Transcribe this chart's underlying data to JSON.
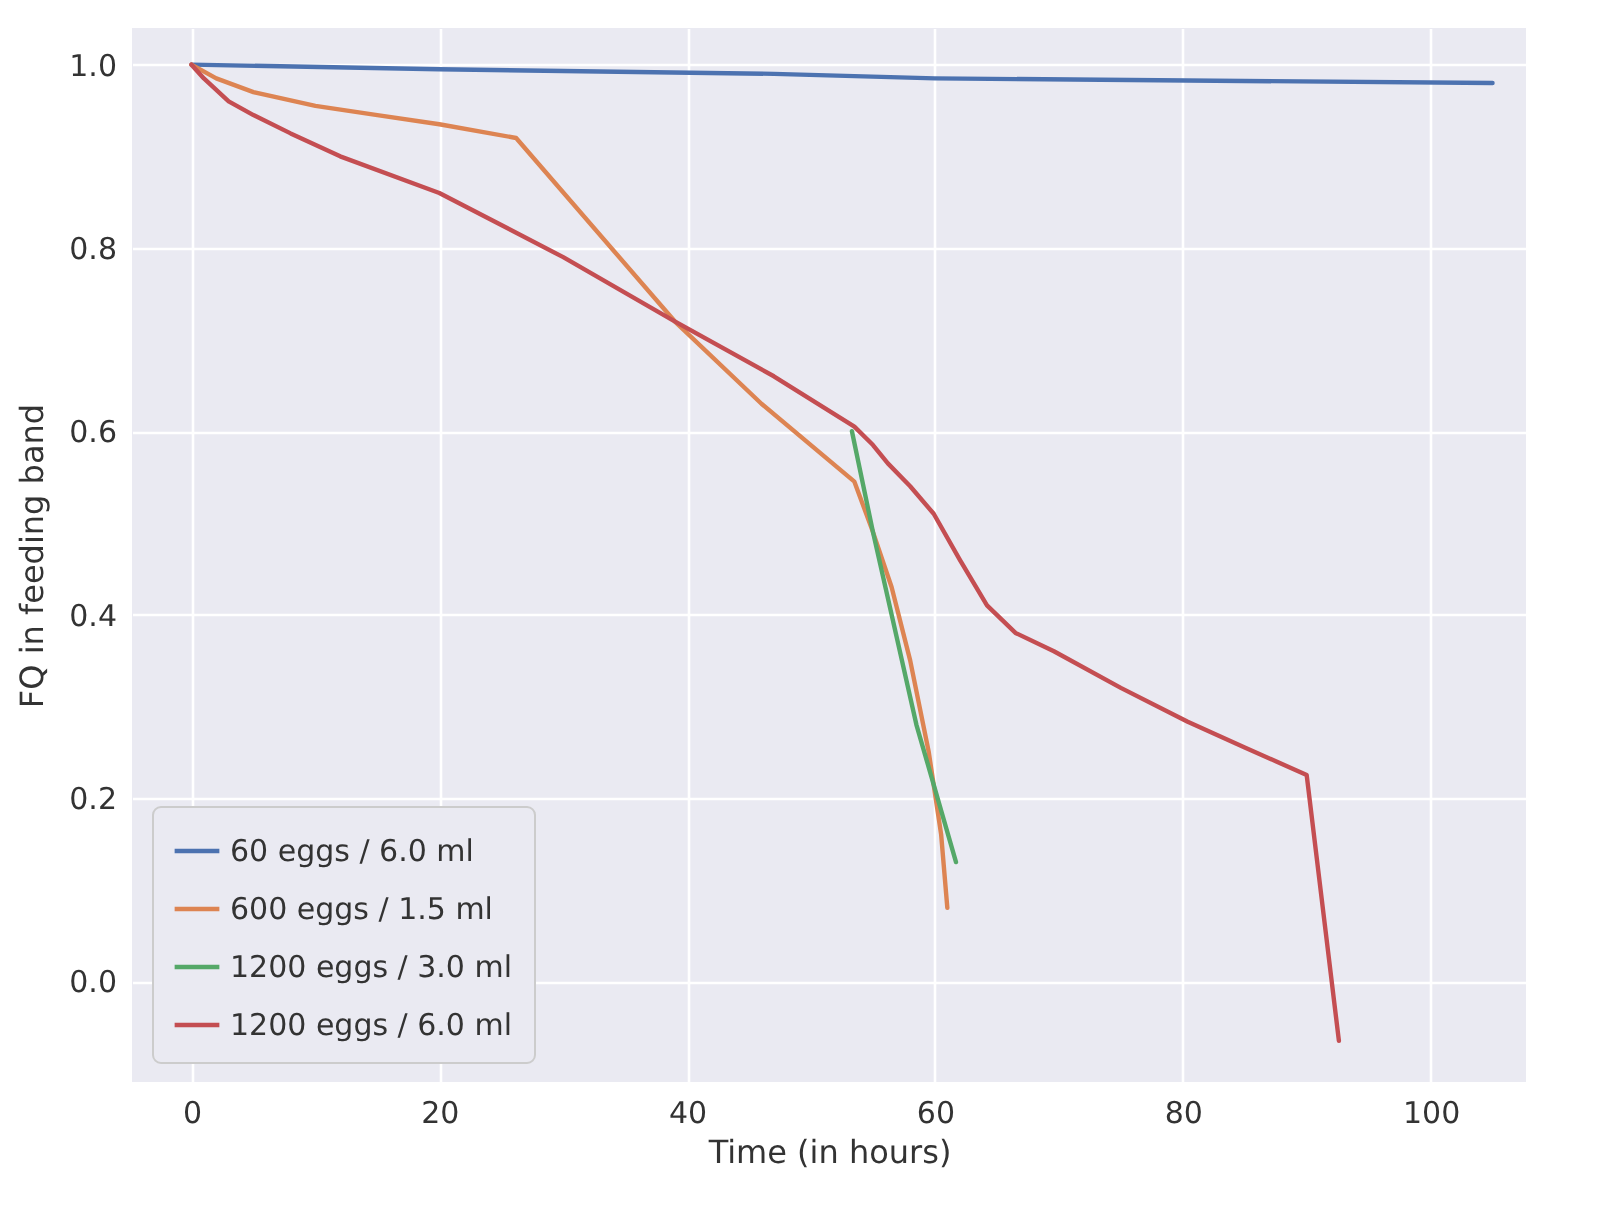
{
  "chart_data": {
    "type": "line",
    "xlabel": "Time (in hours)",
    "ylabel": "FQ in feeding band",
    "xlim": [
      -4.8,
      107.7
    ],
    "ylim": [
      -0.11,
      1.04
    ],
    "xticks": [
      0,
      20,
      40,
      60,
      80,
      100
    ],
    "yticks": [
      {
        "value": 0,
        "label": "0.0"
      },
      {
        "value": 0.2,
        "label": "0.2"
      },
      {
        "value": 0.4,
        "label": "0.4"
      },
      {
        "value": 0.6,
        "label": "0.6"
      },
      {
        "value": 0.8,
        "label": "0.8"
      },
      {
        "value": 1,
        "label": "1.0"
      }
    ],
    "grid": true,
    "legend": "bottom left",
    "line_style": "solid",
    "series": [
      {
        "name": "60 eggs / 6.0 ml",
        "color": "#4c72b0",
        "x": [
          0,
          20,
          47,
          60,
          105
        ],
        "values": [
          1.0,
          0.995,
          0.99,
          0.985,
          0.98
        ]
      },
      {
        "name": "600 eggs / 1.5 ml",
        "color": "#dd8452",
        "x": [
          0,
          2,
          5,
          10,
          15,
          20,
          26.2,
          39,
          46,
          53.5,
          55,
          56.5,
          58,
          59.5,
          60.5,
          61
        ],
        "values": [
          1.0,
          0.985,
          0.97,
          0.955,
          0.945,
          0.935,
          0.92,
          0.72,
          0.63,
          0.545,
          0.49,
          0.43,
          0.35,
          0.25,
          0.16,
          0.08
        ]
      },
      {
        "name": "1200 eggs / 3.0 ml",
        "color": "#55a868",
        "x": [
          53.3,
          55,
          56.5,
          58.5,
          61.7
        ],
        "values": [
          0.6,
          0.49,
          0.4,
          0.28,
          0.13
        ]
      },
      {
        "name": "1200 eggs / 6.0 ml",
        "color": "#c44e52",
        "x": [
          0,
          1,
          3,
          5,
          8,
          12,
          20,
          30,
          39,
          47,
          53.5,
          55,
          56.2,
          58,
          59.9,
          62,
          64.2,
          66.5,
          69.6,
          75,
          80.4,
          85,
          90,
          92.6
        ],
        "values": [
          1.0,
          0.985,
          0.96,
          0.945,
          0.925,
          0.9,
          0.86,
          0.79,
          0.72,
          0.66,
          0.605,
          0.585,
          0.565,
          0.54,
          0.51,
          0.46,
          0.41,
          0.38,
          0.36,
          0.32,
          0.283,
          0.255,
          0.225,
          -0.065
        ]
      }
    ]
  }
}
